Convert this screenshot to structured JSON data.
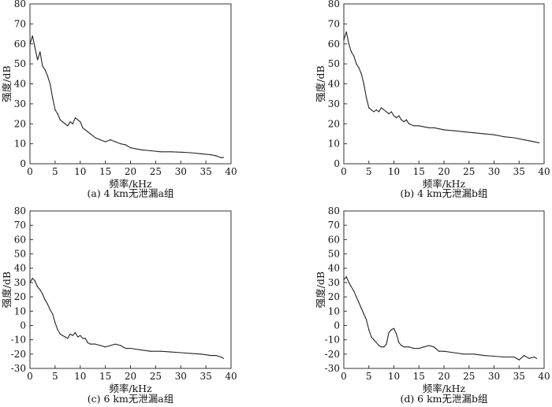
{
  "chart_data": [
    {
      "type": "line",
      "caption": "(a) 4 km无泄漏a组",
      "xlabel": "频率/kHz",
      "ylabel": "强度/dB",
      "xlim": [
        0,
        40
      ],
      "ylim": [
        0,
        80
      ],
      "xticks": [
        "0",
        "5",
        "10",
        "15",
        "20",
        "25",
        "30",
        "35",
        "40"
      ],
      "yticks": [
        "0",
        "10",
        "20",
        "30",
        "40",
        "50",
        "60",
        "70",
        "80"
      ],
      "grid": false,
      "series": [
        {
          "color": "#222222",
          "x": [
            0,
            0.5,
            1,
            1.5,
            2,
            2.5,
            3,
            3.5,
            4,
            4.5,
            5,
            5.5,
            6,
            6.5,
            7,
            7.5,
            8,
            8.5,
            9,
            9.5,
            10,
            10.5,
            11,
            11.5,
            12,
            12.5,
            13,
            14,
            15,
            16,
            17,
            18,
            19,
            20,
            22,
            24,
            26,
            28,
            30,
            32,
            34,
            36,
            37,
            38,
            38.5
          ],
          "y": [
            60,
            64,
            58,
            52,
            56,
            49,
            47,
            44,
            40,
            33,
            27,
            25,
            22,
            21,
            20,
            19,
            21,
            20,
            23,
            22,
            21,
            18,
            17,
            16,
            15,
            14,
            13,
            12,
            11,
            12,
            11,
            10,
            9.5,
            8,
            7,
            6.5,
            6,
            6,
            5.8,
            5.5,
            5,
            4.5,
            4,
            3,
            3.2
          ]
        }
      ]
    },
    {
      "type": "line",
      "caption": "(b) 4 km无泄漏b组",
      "xlabel": "频率/kHz",
      "ylabel": "强度/dB",
      "xlim": [
        0,
        40
      ],
      "ylim": [
        0,
        80
      ],
      "xticks": [
        "0",
        "5",
        "10",
        "15",
        "20",
        "25",
        "30",
        "35",
        "40"
      ],
      "yticks": [
        "0",
        "10",
        "20",
        "30",
        "40",
        "50",
        "60",
        "70",
        "80"
      ],
      "grid": false,
      "series": [
        {
          "color": "#222222",
          "x": [
            0,
            0.5,
            1,
            1.5,
            2,
            2.5,
            3,
            3.5,
            4,
            4.5,
            5,
            5.5,
            6,
            6.5,
            7,
            7.5,
            8,
            8.5,
            9,
            9.5,
            10,
            10.5,
            11,
            11.5,
            12,
            12.5,
            13,
            14,
            15,
            16,
            17,
            18,
            19,
            20,
            22,
            24,
            26,
            28,
            30,
            32,
            34,
            36,
            37,
            38,
            39
          ],
          "y": [
            62,
            66,
            60,
            56,
            54,
            50,
            48,
            45,
            40,
            33,
            28,
            27,
            26,
            27,
            26,
            28,
            27,
            26,
            25,
            26,
            24,
            23,
            24,
            22,
            21,
            22,
            20,
            19,
            19,
            18.5,
            18,
            18,
            17.5,
            17,
            16.5,
            16,
            15.5,
            15,
            14.5,
            13.5,
            13,
            12,
            11.5,
            11,
            10.5
          ]
        }
      ]
    },
    {
      "type": "line",
      "caption": "(c) 6 km无泄漏a组",
      "xlabel": "频率/kHz",
      "ylabel": "强度/dB",
      "xlim": [
        0,
        40
      ],
      "ylim": [
        -30,
        80
      ],
      "xticks": [
        "0",
        "5",
        "10",
        "15",
        "20",
        "25",
        "30",
        "35",
        "40"
      ],
      "yticks": [
        "-30",
        "-20",
        "-10",
        "0",
        "10",
        "20",
        "30",
        "40",
        "50",
        "60",
        "70",
        "80"
      ],
      "grid": false,
      "series": [
        {
          "color": "#222222",
          "x": [
            0,
            0.5,
            1,
            1.5,
            2,
            2.5,
            3,
            3.5,
            4,
            4.5,
            5,
            5.5,
            6,
            6.5,
            7,
            7.5,
            8,
            8.5,
            9,
            9.5,
            10,
            10.5,
            11,
            11.5,
            12,
            13,
            14,
            15,
            16,
            17,
            18,
            19,
            20,
            22,
            24,
            26,
            28,
            30,
            32,
            34,
            36,
            37,
            38,
            38.5
          ],
          "y": [
            30,
            33,
            31,
            27,
            25,
            22,
            18,
            15,
            11,
            8,
            2,
            -3,
            -6,
            -7,
            -8,
            -9,
            -6,
            -7,
            -5,
            -8,
            -7,
            -9,
            -9,
            -12,
            -13,
            -13,
            -14,
            -15,
            -14,
            -13,
            -14,
            -16,
            -16,
            -17,
            -18,
            -18,
            -18.5,
            -19,
            -19.5,
            -20,
            -21,
            -21,
            -22,
            -23
          ]
        }
      ]
    },
    {
      "type": "line",
      "caption": "(d) 6 km无泄漏b组",
      "xlabel": "频率/kHz",
      "ylabel": "强度/dB",
      "xlim": [
        0,
        40
      ],
      "ylim": [
        -30,
        80
      ],
      "xticks": [
        "0",
        "5",
        "10",
        "15",
        "20",
        "25",
        "30",
        "35",
        "40"
      ],
      "yticks": [
        "-30",
        "-20",
        "-10",
        "0",
        "10",
        "20",
        "30",
        "40",
        "50",
        "60",
        "70",
        "80"
      ],
      "grid": false,
      "series": [
        {
          "color": "#222222",
          "x": [
            0,
            0.5,
            1,
            1.5,
            2,
            2.5,
            3,
            3.5,
            4,
            4.5,
            5,
            5.5,
            6,
            6.5,
            7,
            7.5,
            8,
            8.5,
            9,
            9.5,
            10,
            10.5,
            11,
            11.5,
            12,
            13,
            14,
            15,
            16,
            17,
            18,
            19,
            20,
            22,
            24,
            26,
            28,
            30,
            32,
            34,
            35,
            36,
            37,
            38,
            38.5
          ],
          "y": [
            32,
            34,
            30,
            27,
            24,
            20,
            16,
            12,
            8,
            4,
            -3,
            -8,
            -10,
            -12,
            -14,
            -15,
            -15,
            -13,
            -5,
            -3,
            -2,
            -6,
            -12,
            -14,
            -15,
            -15,
            -16,
            -16,
            -15,
            -14,
            -15,
            -18,
            -18,
            -19,
            -20,
            -20,
            -21,
            -21.5,
            -22,
            -22,
            -24,
            -21,
            -23,
            -22,
            -23
          ]
        }
      ]
    }
  ]
}
